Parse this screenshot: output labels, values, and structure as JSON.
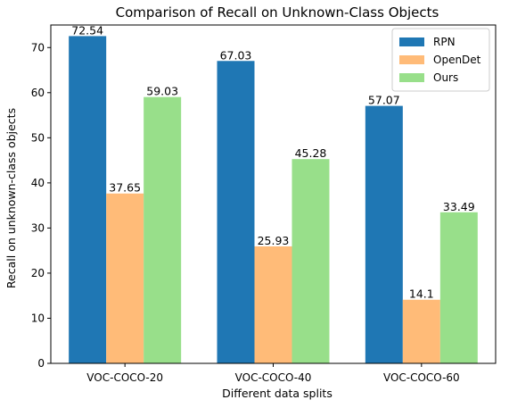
{
  "chart_data": {
    "type": "bar",
    "title": "Comparison of Recall on Unknown-Class Objects",
    "xlabel": "Different data splits",
    "ylabel": "Recall on unknown-class objects",
    "categories": [
      "VOC-COCO-20",
      "VOC-COCO-40",
      "VOC-COCO-60"
    ],
    "series": [
      {
        "name": "RPN",
        "values": [
          72.54,
          67.03,
          57.07
        ],
        "color": "#1f77b4",
        "labels": [
          "72.54",
          "67.03",
          "57.07"
        ]
      },
      {
        "name": "OpenDet",
        "values": [
          37.65,
          25.93,
          14.1
        ],
        "color": "#ffbb78",
        "labels": [
          "37.65",
          "25.93",
          "14.1"
        ]
      },
      {
        "name": "Ours",
        "values": [
          59.03,
          45.28,
          33.49
        ],
        "color": "#98df8a",
        "labels": [
          "59.03",
          "45.28",
          "33.49"
        ]
      }
    ],
    "ylim": [
      0,
      75
    ],
    "yticks": [
      0,
      10,
      20,
      30,
      40,
      50,
      60,
      70
    ],
    "grid": false,
    "legend_position": "top-right"
  }
}
